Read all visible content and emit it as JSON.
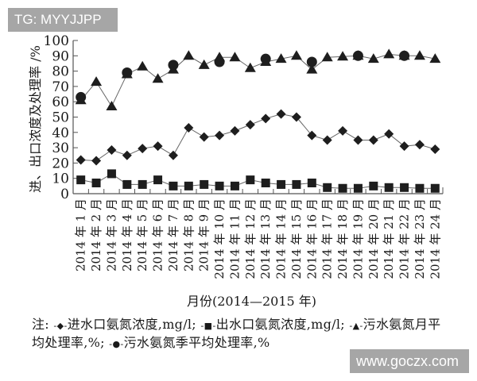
{
  "watermarks": {
    "top_left": "TG: MYYJJPP",
    "bottom_right": "www.goczx.com"
  },
  "chart_data": {
    "type": "line",
    "title": "",
    "xlabel": "月份(2014—2015 年)",
    "ylabel": "进、出口浓度及处理率 /%",
    "ylim": [
      0,
      100
    ],
    "yticks": [
      0,
      10,
      20,
      30,
      40,
      50,
      60,
      70,
      80,
      90,
      100
    ],
    "grid": false,
    "legend_position": "bottom (note below chart)",
    "categories": [
      "2014 年 1 月",
      "2014 年 2 月",
      "2014 年 3 月",
      "2014 年 4 月",
      "2014 年 5 月",
      "2014 年 6 月",
      "2014 年 7 月",
      "2014 年 8 月",
      "2014 年 9 月",
      "2014 年 10 月",
      "2014 年 11 月",
      "2014 年 12 月",
      "2014 年 13 月",
      "2014 年 14 月",
      "2014 年 15 月",
      "2014 年 16 月",
      "2014 年 17 月",
      "2014 年 18 月",
      "2014 年 19 月",
      "2014 年 20 月",
      "2014 年 21 月",
      "2014 年 22 月",
      "2014 年 23 月",
      "2014 年 24 月"
    ],
    "series": [
      {
        "name": "进水口氨氮浓度,mg/l",
        "marker": "diamond",
        "values": [
          22,
          21.5,
          28.5,
          25,
          29.5,
          31,
          25,
          43,
          37,
          38,
          41,
          45,
          49,
          52,
          50,
          38,
          35,
          41,
          35,
          35,
          39,
          31,
          32,
          29
        ]
      },
      {
        "name": "出水口氨氮浓度,mg/l",
        "marker": "square",
        "values": [
          9,
          7,
          13,
          6,
          6,
          9,
          5,
          5,
          6,
          5,
          5,
          9,
          7,
          6,
          6,
          7,
          4,
          3.5,
          3.5,
          5,
          4,
          4,
          3.5,
          3.5
        ]
      },
      {
        "name": "污水氨氮月平均处理率,%",
        "marker": "triangle",
        "values": [
          61,
          73,
          57,
          78,
          83,
          75,
          81,
          90,
          84,
          89,
          89,
          82,
          86,
          88,
          90,
          81,
          89,
          89.5,
          90,
          88,
          91,
          90,
          90,
          88
        ]
      },
      {
        "name": "污水氨氮季平均处理率,%",
        "marker": "circle",
        "points": [
          {
            "index": 0,
            "value": 63
          },
          {
            "index": 3,
            "value": 79
          },
          {
            "index": 6,
            "value": 84
          },
          {
            "index": 9,
            "value": 86
          },
          {
            "index": 12,
            "value": 88
          },
          {
            "index": 15,
            "value": 86
          },
          {
            "index": 18,
            "value": 90
          },
          {
            "index": 21,
            "value": 90
          }
        ]
      }
    ]
  },
  "legend": {
    "prefix": "注:",
    "items": [
      {
        "symbol": "-◆-",
        "label": "进水口氨氮浓度,mg/l;"
      },
      {
        "symbol": "-■-",
        "label": "出水口氨氮浓度,mg/l;"
      },
      {
        "symbol": "-▲-",
        "label": "污水氨氮月平均处理率,%;"
      },
      {
        "symbol": "-●-",
        "label": "污水氨氮季平均处理率,%"
      }
    ]
  }
}
